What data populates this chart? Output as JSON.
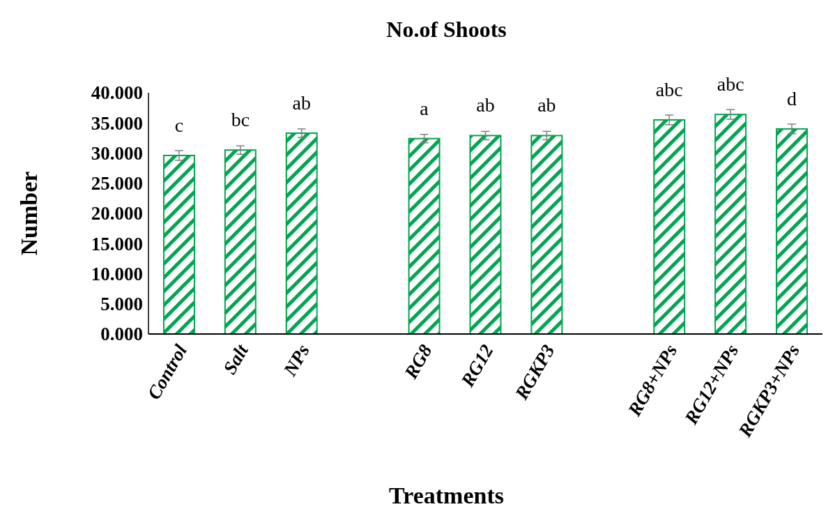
{
  "chart_data": {
    "type": "bar",
    "title": "No.of Shoots",
    "xlabel": "Treatments",
    "ylabel": "Number",
    "categories": [
      "Control",
      "Salt",
      "NPs",
      null,
      "RG8",
      "RG12",
      "RGKP3",
      null,
      "RG8+NPs",
      "RG12+NPs",
      "RGKP3+NPs"
    ],
    "values": [
      29.6,
      30.5,
      33.3,
      null,
      32.4,
      32.9,
      32.9,
      null,
      35.5,
      36.4,
      34.0
    ],
    "errors": [
      0.8,
      0.7,
      0.7,
      null,
      0.7,
      0.7,
      0.7,
      null,
      0.8,
      0.8,
      0.8
    ],
    "color": "#00a650",
    "ylim": [
      0,
      40
    ],
    "yticks": [
      {
        "value": 0,
        "label": "0.000"
      },
      {
        "value": 5,
        "label": "5.000"
      },
      {
        "value": 10,
        "label": "10.000"
      },
      {
        "value": 15,
        "label": "15.000"
      },
      {
        "value": 20,
        "label": "20.000"
      },
      {
        "value": 25,
        "label": "25.000"
      },
      {
        "value": 30,
        "label": "30.000"
      },
      {
        "value": 35,
        "label": "35.000"
      },
      {
        "value": 40,
        "label": "40.000"
      }
    ],
    "annotations": [
      {
        "text": "c",
        "x": "Control",
        "y": 29.6
      },
      {
        "text": "bc",
        "x": "Salt",
        "y": 30.5
      },
      {
        "text": "ab",
        "x": "NPs",
        "y": 33.3
      },
      {
        "text": "a",
        "x": "RG8",
        "y": 32.4
      },
      {
        "text": "ab",
        "x": "RG12",
        "y": 32.9
      },
      {
        "text": "ab",
        "x": "RGKP3",
        "y": 32.9
      },
      {
        "text": "abc",
        "x": "RG8+NPs",
        "y": 35.5
      },
      {
        "text": "abc",
        "x": "RG12+NPs",
        "y": 36.4
      },
      {
        "text": "d",
        "x": "RGKP3+NPs",
        "y": 34.0
      }
    ],
    "grid": false
  }
}
